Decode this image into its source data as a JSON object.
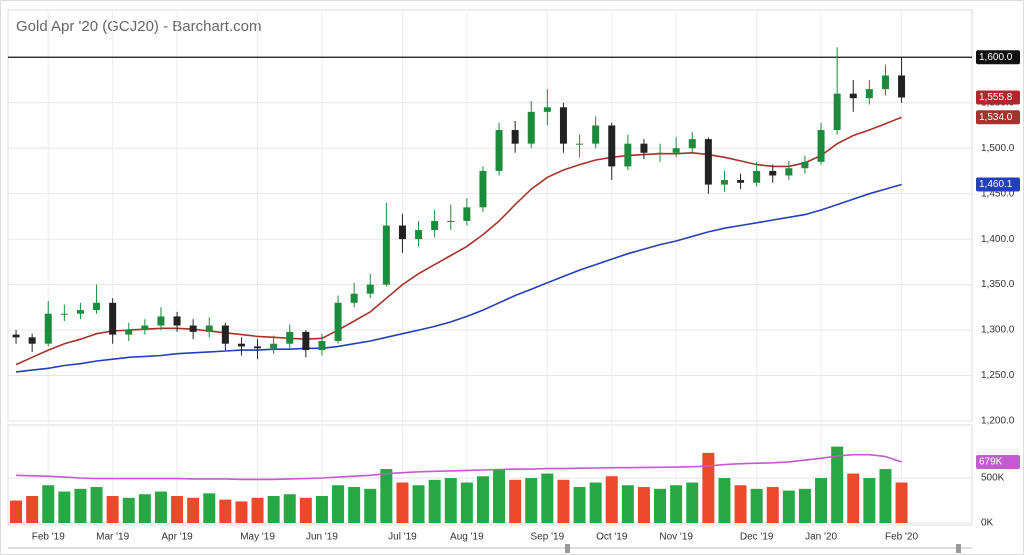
{
  "chart_data": [
    {
      "type": "candlestick",
      "title": "Gold Apr '20 (GCJ20) - Barchart.com",
      "categories": [
        null,
        null,
        "Feb '19",
        null,
        null,
        null,
        "Mar '19",
        null,
        null,
        null,
        "Apr '19",
        null,
        null,
        null,
        null,
        "May '19",
        null,
        null,
        null,
        "Jun '19",
        null,
        null,
        null,
        null,
        "Jul '19",
        null,
        null,
        null,
        "Aug '19",
        null,
        null,
        null,
        null,
        "Sep '19",
        null,
        null,
        null,
        "Oct '19",
        null,
        null,
        null,
        "Nov '19",
        null,
        null,
        null,
        null,
        "Dec '19",
        null,
        null,
        null,
        "Jan '20",
        null,
        null,
        null,
        null,
        "Feb '20"
      ],
      "open": [
        1295,
        1292,
        1285,
        1318,
        1318,
        1322,
        1330,
        1295,
        1300,
        1305,
        1315,
        1305,
        1298,
        1305,
        1285,
        1282,
        1280,
        1285,
        1298,
        1278,
        1288,
        1330,
        1340,
        1350,
        1415,
        1400,
        1410,
        1420,
        1420,
        1435,
        1475,
        1520,
        1505,
        1540,
        1545,
        1505,
        1505,
        1525,
        1480,
        1505,
        1495,
        1495,
        1500,
        1510,
        1460,
        1465,
        1462,
        1475,
        1470,
        1478,
        1485,
        1520,
        1560,
        1555,
        1565,
        1580
      ],
      "high": [
        1300,
        1296,
        1332,
        1328,
        1330,
        1350,
        1335,
        1308,
        1312,
        1325,
        1320,
        1312,
        1314,
        1308,
        1292,
        1290,
        1294,
        1306,
        1300,
        1296,
        1338,
        1352,
        1362,
        1440,
        1428,
        1420,
        1432,
        1438,
        1445,
        1480,
        1528,
        1530,
        1552,
        1565,
        1550,
        1515,
        1535,
        1528,
        1515,
        1510,
        1505,
        1512,
        1518,
        1512,
        1475,
        1472,
        1485,
        1482,
        1486,
        1492,
        1528,
        1611,
        1575,
        1575,
        1592,
        1600
      ],
      "low": [
        1285,
        1276,
        1282,
        1310,
        1312,
        1318,
        1285,
        1288,
        1295,
        1300,
        1298,
        1290,
        1292,
        1278,
        1272,
        1268,
        1274,
        1280,
        1270,
        1272,
        1285,
        1325,
        1335,
        1348,
        1385,
        1392,
        1402,
        1410,
        1415,
        1430,
        1470,
        1495,
        1500,
        1525,
        1495,
        1490,
        1500,
        1465,
        1476,
        1488,
        1485,
        1490,
        1495,
        1450,
        1452,
        1455,
        1458,
        1462,
        1465,
        1472,
        1482,
        1515,
        1540,
        1548,
        1558,
        1550
      ],
      "close": [
        1292,
        1285,
        1318,
        1318,
        1322,
        1330,
        1295,
        1300,
        1305,
        1315,
        1305,
        1298,
        1305,
        1285,
        1282,
        1280,
        1285,
        1298,
        1278,
        1288,
        1330,
        1340,
        1350,
        1415,
        1400,
        1410,
        1420,
        1420,
        1435,
        1475,
        1520,
        1505,
        1540,
        1545,
        1505,
        1505,
        1525,
        1480,
        1505,
        1495,
        1495,
        1500,
        1510,
        1460,
        1465,
        1462,
        1475,
        1470,
        1478,
        1485,
        1520,
        1560,
        1555,
        1565,
        1580,
        1555.8
      ],
      "close_value_labels": [
        null,
        null,
        null,
        null,
        null,
        null,
        null,
        null,
        null,
        null,
        null,
        null,
        null,
        null,
        null,
        null,
        null,
        null,
        null,
        null,
        null,
        null,
        null,
        null,
        null,
        null,
        null,
        null,
        null,
        null,
        null,
        null,
        null,
        null,
        null,
        null,
        null,
        null,
        null,
        null,
        null,
        null,
        null,
        null,
        null,
        null,
        null,
        null,
        null,
        null,
        null,
        null,
        null,
        null,
        null,
        "1,555.8"
      ],
      "up_color": "#1c8c3c",
      "down_color": "#222222",
      "badge_color": "#b3262c",
      "series": [
        {
          "color": "#a5332c",
          "values": [
            1262,
            1270,
            1278,
            1285,
            1290,
            1296,
            1299,
            1300,
            1301,
            1302,
            1302,
            1301,
            1299,
            1297,
            1295,
            1293,
            1292,
            1291,
            1290,
            1291,
            1300,
            1310,
            1320,
            1335,
            1350,
            1362,
            1372,
            1382,
            1392,
            1405,
            1420,
            1438,
            1455,
            1468,
            1476,
            1482,
            1487,
            1490,
            1492,
            1493,
            1494,
            1494,
            1495,
            1493,
            1490,
            1486,
            1482,
            1480,
            1480,
            1484,
            1492,
            1505,
            1514,
            1520,
            1527,
            1534
          ],
          "value_labels": [
            null,
            null,
            null,
            null,
            null,
            null,
            null,
            null,
            null,
            null,
            null,
            null,
            null,
            null,
            null,
            null,
            null,
            null,
            null,
            null,
            null,
            null,
            null,
            null,
            null,
            null,
            null,
            null,
            null,
            null,
            null,
            null,
            null,
            null,
            null,
            null,
            null,
            null,
            null,
            null,
            null,
            null,
            null,
            null,
            null,
            null,
            null,
            null,
            null,
            null,
            null,
            null,
            null,
            null,
            null,
            "1,534.0"
          ]
        },
        {
          "color": "#2440b8",
          "values": [
            1254,
            1256,
            1258,
            1261,
            1263,
            1266,
            1268,
            1270,
            1271,
            1272,
            1274,
            1275,
            1276,
            1277,
            1278,
            1278,
            1279,
            1279,
            1280,
            1280,
            1282,
            1285,
            1288,
            1292,
            1296,
            1300,
            1304,
            1309,
            1315,
            1322,
            1330,
            1338,
            1345,
            1352,
            1359,
            1366,
            1372,
            1378,
            1384,
            1389,
            1394,
            1398,
            1403,
            1408,
            1412,
            1415,
            1418,
            1421,
            1424,
            1427,
            1432,
            1438,
            1444,
            1450,
            1455,
            1460.1
          ],
          "value_labels": [
            null,
            null,
            null,
            null,
            null,
            null,
            null,
            null,
            null,
            null,
            null,
            null,
            null,
            null,
            null,
            null,
            null,
            null,
            null,
            null,
            null,
            null,
            null,
            null,
            null,
            null,
            null,
            null,
            null,
            null,
            null,
            null,
            null,
            null,
            null,
            null,
            null,
            null,
            null,
            null,
            null,
            null,
            null,
            null,
            null,
            null,
            null,
            null,
            null,
            null,
            null,
            null,
            null,
            null,
            null,
            "1,460.1"
          ]
        }
      ],
      "level": {
        "value": 1600,
        "label": "1,600.0"
      },
      "ylim": [
        1200,
        1652
      ],
      "yticks": [
        {
          "value": 1200,
          "label": "1,200.0"
        },
        {
          "value": 1250,
          "label": "1,250.0"
        },
        {
          "value": 1300,
          "label": "1,300.0"
        },
        {
          "value": 1350,
          "label": "1,350.0"
        },
        {
          "value": 1400,
          "label": "1,400.0"
        },
        {
          "value": 1450,
          "label": "1,450.0"
        },
        {
          "value": 1500,
          "label": "1,500.0"
        },
        {
          "value": 1550,
          "label": "1,550.0"
        }
      ],
      "grid": true
    },
    {
      "type": "bar",
      "values": [
        250000,
        300000,
        420000,
        350000,
        380000,
        400000,
        300000,
        280000,
        320000,
        350000,
        300000,
        280000,
        330000,
        260000,
        240000,
        280000,
        300000,
        320000,
        280000,
        300000,
        420000,
        400000,
        380000,
        600000,
        450000,
        420000,
        480000,
        500000,
        450000,
        520000,
        600000,
        480000,
        500000,
        550000,
        480000,
        400000,
        450000,
        520000,
        420000,
        400000,
        380000,
        420000,
        450000,
        780000,
        500000,
        420000,
        380000,
        400000,
        360000,
        380000,
        500000,
        850000,
        550000,
        500000,
        600000,
        450000
      ],
      "up_color": "#27a844",
      "down_color": "#ea4a2a",
      "series": [
        {
          "color": "#c15bcf",
          "values": [
            530000,
            525000,
            520000,
            510000,
            500000,
            495000,
            495000,
            495000,
            495000,
            495000,
            495000,
            490000,
            490000,
            490000,
            485000,
            485000,
            485000,
            490000,
            495000,
            500000,
            510000,
            520000,
            530000,
            550000,
            560000,
            570000,
            575000,
            580000,
            585000,
            590000,
            595000,
            600000,
            600000,
            605000,
            605000,
            610000,
            612000,
            615000,
            615000,
            618000,
            620000,
            622000,
            625000,
            635000,
            650000,
            660000,
            665000,
            670000,
            680000,
            700000,
            720000,
            745000,
            760000,
            760000,
            740000,
            679000
          ],
          "value_labels": [
            null,
            null,
            null,
            null,
            null,
            null,
            null,
            null,
            null,
            null,
            null,
            null,
            null,
            null,
            null,
            null,
            null,
            null,
            null,
            null,
            null,
            null,
            null,
            null,
            null,
            null,
            null,
            null,
            null,
            null,
            null,
            null,
            null,
            null,
            null,
            null,
            null,
            null,
            null,
            null,
            null,
            null,
            null,
            null,
            null,
            null,
            null,
            null,
            null,
            null,
            null,
            null,
            null,
            null,
            null,
            "679K"
          ]
        }
      ],
      "ylim": [
        0,
        1090000
      ],
      "yticks": [
        {
          "value": 0,
          "label": "0K"
        },
        {
          "value": 500000,
          "label": "500K"
        }
      ],
      "grid": true
    }
  ]
}
